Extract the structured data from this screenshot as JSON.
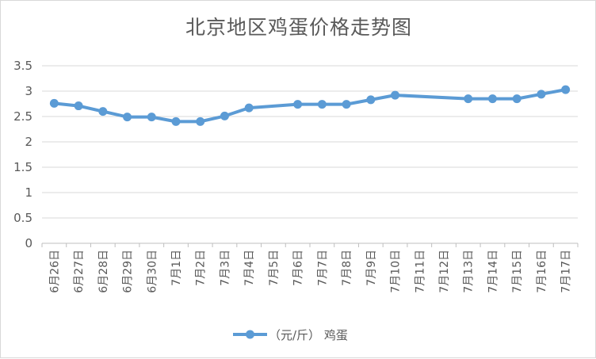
{
  "chart_data": {
    "type": "line",
    "title": "北京地区鸡蛋价格走势图",
    "categories": [
      "6月26日",
      "6月27日",
      "6月28日",
      "6月29日",
      "6月30日",
      "7月1日",
      "7月2日",
      "7月3日",
      "7月4日",
      "7月5日",
      "7月6日",
      "7月7日",
      "7月8日",
      "7月9日",
      "7月10日",
      "7月11日",
      "7月12日",
      "7月13日",
      "7月14日",
      "7月15日",
      "7月16日",
      "7月17日"
    ],
    "series": [
      {
        "name": "（元/斤） 鸡蛋",
        "values": [
          2.76,
          2.71,
          2.6,
          2.49,
          2.49,
          2.4,
          2.4,
          2.51,
          2.67,
          null,
          2.74,
          2.74,
          2.74,
          2.83,
          2.92,
          null,
          null,
          2.85,
          2.85,
          2.85,
          2.94,
          3.03
        ],
        "color": "#5b9bd5"
      }
    ],
    "y_ticks": [
      "0",
      "0.5",
      "1",
      "1.5",
      "2",
      "2.5",
      "3",
      "3.5"
    ],
    "ylim": [
      0,
      3.5
    ],
    "grid": true,
    "legend": "bottom",
    "xlabel": "",
    "ylabel": ""
  }
}
